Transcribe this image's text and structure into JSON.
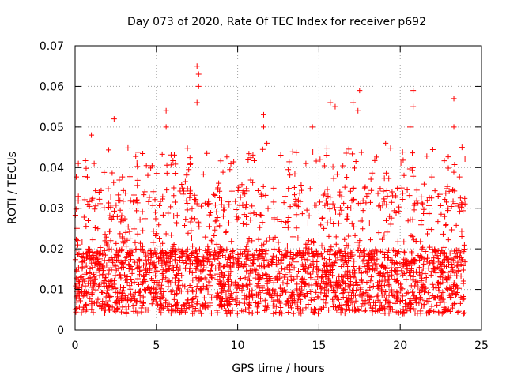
{
  "chart_data": {
    "type": "scatter",
    "title": "Day 073 of 2020, Rate Of TEC Index for receiver p692",
    "xlabel": "GPS time / hours",
    "ylabel": "ROTI / TECUs",
    "xlim": [
      0,
      25
    ],
    "ylim": [
      0,
      0.07
    ],
    "xticks": [
      0,
      5,
      10,
      15,
      20,
      25
    ],
    "xtick_labels": [
      "0",
      "5",
      "10",
      "15",
      "20",
      "25"
    ],
    "yticks": [
      0,
      0.01,
      0.02,
      0.03,
      0.04,
      0.05,
      0.06,
      0.07
    ],
    "ytick_labels": [
      "0",
      "0.01",
      "0.02",
      "0.03",
      "0.04",
      "0.05",
      "0.06",
      "0.07"
    ],
    "grid": true,
    "marker": "+",
    "series_color": "#ff0000",
    "data_x_range": [
      0,
      24
    ],
    "typical_y_range": [
      0.004,
      0.02
    ],
    "notable_points": [
      {
        "x": 0.2,
        "y": 0.041
      },
      {
        "x": 1.0,
        "y": 0.048
      },
      {
        "x": 2.4,
        "y": 0.052
      },
      {
        "x": 5.6,
        "y": 0.054
      },
      {
        "x": 5.6,
        "y": 0.05
      },
      {
        "x": 7.5,
        "y": 0.065
      },
      {
        "x": 7.6,
        "y": 0.063
      },
      {
        "x": 7.6,
        "y": 0.06
      },
      {
        "x": 7.5,
        "y": 0.056
      },
      {
        "x": 11.6,
        "y": 0.053
      },
      {
        "x": 11.6,
        "y": 0.05
      },
      {
        "x": 11.8,
        "y": 0.046
      },
      {
        "x": 14.6,
        "y": 0.05
      },
      {
        "x": 15.7,
        "y": 0.056
      },
      {
        "x": 16.0,
        "y": 0.055
      },
      {
        "x": 17.1,
        "y": 0.056
      },
      {
        "x": 17.4,
        "y": 0.054
      },
      {
        "x": 17.5,
        "y": 0.059
      },
      {
        "x": 19.1,
        "y": 0.046
      },
      {
        "x": 20.8,
        "y": 0.059
      },
      {
        "x": 20.8,
        "y": 0.055
      },
      {
        "x": 20.6,
        "y": 0.05
      },
      {
        "x": 23.3,
        "y": 0.057
      },
      {
        "x": 23.3,
        "y": 0.05
      },
      {
        "x": 23.8,
        "y": 0.045
      }
    ]
  }
}
